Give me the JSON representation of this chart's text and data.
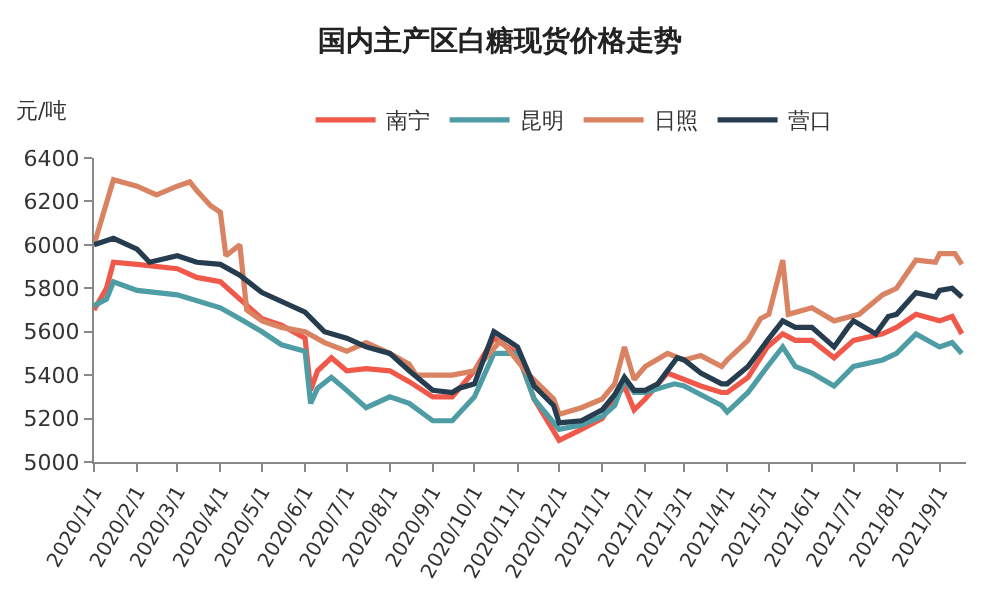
{
  "chart_data": {
    "type": "line",
    "title": "国内主产区白糖现货价格走势",
    "ylabel": "元/吨",
    "legend": "top",
    "marker": "none",
    "line_style": "solid",
    "xlim": [
      "2020-01-01",
      "2021-09-20"
    ],
    "ylim": [
      5000,
      6400
    ],
    "yticks": [
      5000,
      5200,
      5400,
      5600,
      5800,
      6000,
      6200,
      6400
    ],
    "xticks": [
      {
        "value": "2020-01-01",
        "label": "2020/1/1"
      },
      {
        "value": "2020-02-01",
        "label": "2020/2/1"
      },
      {
        "value": "2020-03-01",
        "label": "2020/3/1"
      },
      {
        "value": "2020-04-01",
        "label": "2020/4/1"
      },
      {
        "value": "2020-05-01",
        "label": "2020/5/1"
      },
      {
        "value": "2020-06-01",
        "label": "2020/6/1"
      },
      {
        "value": "2020-07-01",
        "label": "2020/7/1"
      },
      {
        "value": "2020-08-01",
        "label": "2020/8/1"
      },
      {
        "value": "2020-09-01",
        "label": "2020/9/1"
      },
      {
        "value": "2020-10-01",
        "label": "2020/10/1"
      },
      {
        "value": "2020-11-01",
        "label": "2020/11/1"
      },
      {
        "value": "2020-12-01",
        "label": "2020/12/1"
      },
      {
        "value": "2021-01-01",
        "label": "2021/1/1"
      },
      {
        "value": "2021-02-01",
        "label": "2021/2/1"
      },
      {
        "value": "2021-03-01",
        "label": "2021/3/1"
      },
      {
        "value": "2021-04-01",
        "label": "2021/4/1"
      },
      {
        "value": "2021-05-01",
        "label": "2021/5/1"
      },
      {
        "value": "2021-06-01",
        "label": "2021/6/1"
      },
      {
        "value": "2021-07-01",
        "label": "2021/7/1"
      },
      {
        "value": "2021-08-01",
        "label": "2021/8/1"
      },
      {
        "value": "2021-09-01",
        "label": "2021/9/1"
      }
    ],
    "series": [
      {
        "name": "南宁",
        "color": "#f0584a",
        "x": [
          "2020-01-01",
          "2020-01-10",
          "2020-01-15",
          "2020-02-01",
          "2020-03-01",
          "2020-03-15",
          "2020-04-01",
          "2020-04-15",
          "2020-05-01",
          "2020-05-15",
          "2020-06-01",
          "2020-06-05",
          "2020-06-10",
          "2020-06-20",
          "2020-07-01",
          "2020-07-15",
          "2020-08-01",
          "2020-08-15",
          "2020-09-01",
          "2020-09-15",
          "2020-10-01",
          "2020-10-15",
          "2020-11-01",
          "2020-11-13",
          "2020-12-01",
          "2020-12-17",
          "2021-01-01",
          "2021-01-10",
          "2021-01-17",
          "2021-01-24",
          "2021-02-01",
          "2021-02-17",
          "2021-03-01",
          "2021-03-13",
          "2021-03-28",
          "2021-04-01",
          "2021-04-16",
          "2021-04-30",
          "2021-05-11",
          "2021-05-20",
          "2021-06-01",
          "2021-06-17",
          "2021-07-01",
          "2021-07-22",
          "2021-08-01",
          "2021-08-15",
          "2021-09-01",
          "2021-09-10",
          "2021-09-17"
        ],
        "values": [
          5700,
          5800,
          5920,
          5910,
          5890,
          5850,
          5830,
          5750,
          5660,
          5630,
          5570,
          5330,
          5420,
          5480,
          5420,
          5430,
          5420,
          5370,
          5300,
          5300,
          5420,
          5570,
          5500,
          5290,
          5100,
          5150,
          5200,
          5290,
          5350,
          5240,
          5290,
          5410,
          5380,
          5350,
          5320,
          5320,
          5390,
          5530,
          5590,
          5560,
          5560,
          5480,
          5560,
          5590,
          5620,
          5680,
          5650,
          5670,
          5590
        ]
      },
      {
        "name": "昆明",
        "color": "#4f9da4",
        "x": [
          "2020-01-01",
          "2020-01-10",
          "2020-01-15",
          "2020-02-01",
          "2020-03-01",
          "2020-04-01",
          "2020-04-15",
          "2020-05-01",
          "2020-05-15",
          "2020-06-01",
          "2020-06-05",
          "2020-06-10",
          "2020-06-20",
          "2020-07-01",
          "2020-07-15",
          "2020-08-01",
          "2020-08-15",
          "2020-09-01",
          "2020-09-15",
          "2020-10-01",
          "2020-10-15",
          "2020-11-01",
          "2020-11-13",
          "2020-12-01",
          "2020-12-17",
          "2021-01-01",
          "2021-01-10",
          "2021-01-17",
          "2021-01-24",
          "2021-02-01",
          "2021-02-22",
          "2021-03-01",
          "2021-03-28",
          "2021-04-01",
          "2021-04-16",
          "2021-04-30",
          "2021-05-11",
          "2021-05-20",
          "2021-06-01",
          "2021-06-17",
          "2021-07-01",
          "2021-07-22",
          "2021-08-01",
          "2021-08-15",
          "2021-09-01",
          "2021-09-10",
          "2021-09-17"
        ],
        "values": [
          5720,
          5750,
          5830,
          5790,
          5770,
          5710,
          5660,
          5600,
          5540,
          5510,
          5270,
          5340,
          5390,
          5330,
          5250,
          5300,
          5270,
          5190,
          5190,
          5300,
          5500,
          5500,
          5290,
          5150,
          5170,
          5210,
          5260,
          5380,
          5320,
          5320,
          5360,
          5350,
          5260,
          5230,
          5320,
          5440,
          5530,
          5440,
          5410,
          5350,
          5440,
          5470,
          5500,
          5590,
          5530,
          5550,
          5500
        ]
      },
      {
        "name": "日照",
        "color": "#d98362",
        "x": [
          "2020-01-01",
          "2020-01-08",
          "2020-01-15",
          "2020-02-01",
          "2020-02-15",
          "2020-03-01",
          "2020-03-10",
          "2020-03-15",
          "2020-03-25",
          "2020-04-01",
          "2020-04-05",
          "2020-04-15",
          "2020-04-20",
          "2020-05-01",
          "2020-05-15",
          "2020-06-01",
          "2020-06-15",
          "2020-07-01",
          "2020-07-15",
          "2020-08-01",
          "2020-08-15",
          "2020-08-20",
          "2020-09-01",
          "2020-09-15",
          "2020-10-01",
          "2020-10-20",
          "2020-11-08",
          "2020-11-27",
          "2020-12-01",
          "2020-12-17",
          "2021-01-01",
          "2021-01-10",
          "2021-01-17",
          "2021-01-24",
          "2021-02-01",
          "2021-02-17",
          "2021-03-01",
          "2021-03-13",
          "2021-03-28",
          "2021-04-01",
          "2021-04-16",
          "2021-04-25",
          "2021-05-01",
          "2021-05-11",
          "2021-05-15",
          "2021-06-01",
          "2021-06-17",
          "2021-07-05",
          "2021-07-22",
          "2021-08-01",
          "2021-08-15",
          "2021-08-29",
          "2021-09-01",
          "2021-09-12",
          "2021-09-17"
        ],
        "values": [
          6000,
          6150,
          6300,
          6270,
          6230,
          6270,
          6290,
          6250,
          6180,
          6150,
          5950,
          6000,
          5700,
          5650,
          5620,
          5600,
          5550,
          5510,
          5550,
          5500,
          5450,
          5400,
          5400,
          5400,
          5420,
          5560,
          5410,
          5290,
          5220,
          5250,
          5290,
          5360,
          5530,
          5380,
          5440,
          5500,
          5470,
          5490,
          5440,
          5470,
          5560,
          5660,
          5680,
          5930,
          5680,
          5710,
          5650,
          5680,
          5770,
          5800,
          5930,
          5920,
          5960,
          5960,
          5910
        ]
      },
      {
        "name": "营口",
        "color": "#263d4f",
        "x": [
          "2020-01-01",
          "2020-01-15",
          "2020-02-01",
          "2020-02-10",
          "2020-03-01",
          "2020-03-15",
          "2020-04-01",
          "2020-04-15",
          "2020-05-01",
          "2020-06-01",
          "2020-06-15",
          "2020-07-01",
          "2020-07-15",
          "2020-08-01",
          "2020-08-15",
          "2020-09-01",
          "2020-09-15",
          "2020-09-20",
          "2020-10-01",
          "2020-10-15",
          "2020-10-25",
          "2020-11-01",
          "2020-11-13",
          "2020-11-27",
          "2020-12-01",
          "2020-12-17",
          "2021-01-01",
          "2021-01-10",
          "2021-01-17",
          "2021-01-24",
          "2021-02-01",
          "2021-02-10",
          "2021-02-24",
          "2021-03-01",
          "2021-03-13",
          "2021-03-28",
          "2021-04-01",
          "2021-04-16",
          "2021-04-30",
          "2021-05-11",
          "2021-05-20",
          "2021-06-01",
          "2021-06-17",
          "2021-06-27",
          "2021-07-01",
          "2021-07-17",
          "2021-07-26",
          "2021-08-01",
          "2021-08-15",
          "2021-08-29",
          "2021-09-01",
          "2021-09-10",
          "2021-09-17"
        ],
        "values": [
          6000,
          6030,
          5980,
          5920,
          5950,
          5920,
          5910,
          5860,
          5780,
          5690,
          5600,
          5570,
          5530,
          5500,
          5420,
          5330,
          5320,
          5340,
          5360,
          5600,
          5560,
          5530,
          5350,
          5260,
          5180,
          5190,
          5240,
          5310,
          5390,
          5330,
          5330,
          5360,
          5480,
          5470,
          5410,
          5360,
          5360,
          5440,
          5560,
          5650,
          5620,
          5620,
          5530,
          5620,
          5650,
          5590,
          5670,
          5680,
          5780,
          5760,
          5790,
          5800,
          5760
        ]
      }
    ]
  }
}
